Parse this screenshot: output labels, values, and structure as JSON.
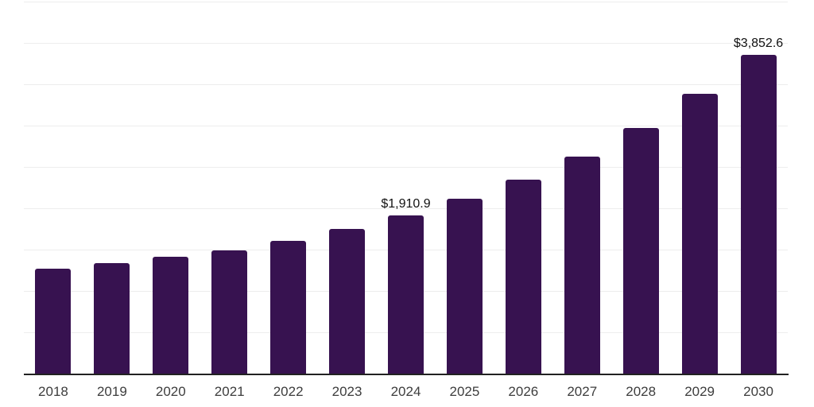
{
  "chart_data": {
    "type": "bar",
    "title": "",
    "xlabel": "",
    "ylabel": "",
    "categories": [
      "2018",
      "2019",
      "2020",
      "2021",
      "2022",
      "2023",
      "2024",
      "2025",
      "2026",
      "2027",
      "2028",
      "2029",
      "2030"
    ],
    "values": [
      1270,
      1337,
      1413,
      1490,
      1605,
      1750,
      1910.9,
      2115,
      2345,
      2625,
      2970,
      3385,
      3852.6
    ],
    "data_labels": [
      null,
      null,
      null,
      null,
      null,
      null,
      "$1,910.9",
      null,
      null,
      null,
      null,
      null,
      "$3,852.6"
    ],
    "ylim": [
      0,
      4500
    ],
    "gridline_step": 500,
    "grid": "horizontal-light",
    "legend": "none",
    "y_axis_tick_labels_visible": false,
    "colors": {
      "bar": "#371250",
      "axis_line": "#222222",
      "gridline": "#ededed",
      "x_tick_label": "#3d3d3d",
      "data_label": "#111111",
      "background": "#ffffff"
    }
  }
}
